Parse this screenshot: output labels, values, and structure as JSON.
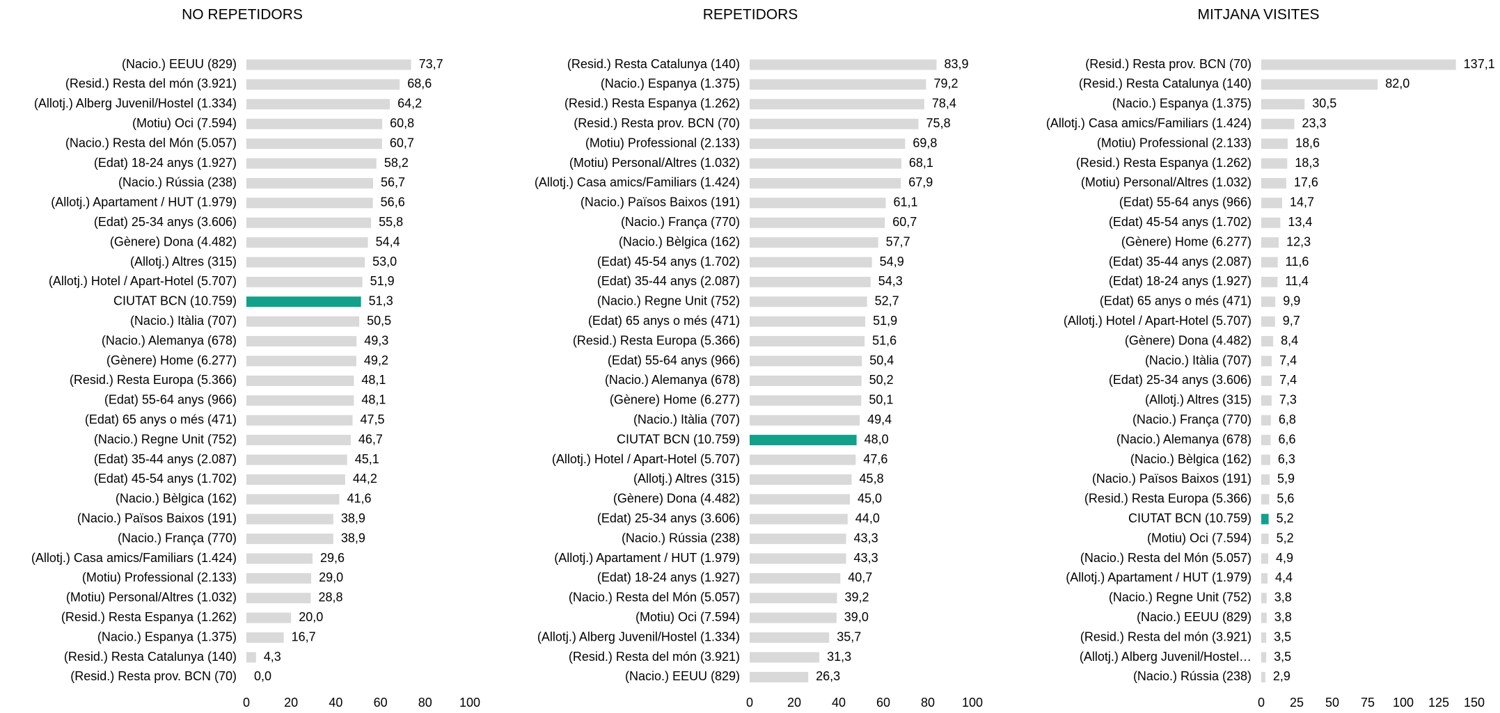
{
  "chart_data": [
    {
      "type": "barh",
      "title": "NO REPETIDORS",
      "categories": [
        "(Nacio.) EEUU (829)",
        "(Resid.) Resta del món (3.921)",
        "(Allotj.) Alberg Juvenil/Hostel (1.334)",
        "(Motiu) Oci (7.594)",
        "(Nacio.) Resta del Món (5.057)",
        "(Edat) 18-24 anys (1.927)",
        "(Nacio.) Rússia (238)",
        "(Allotj.) Apartament / HUT (1.979)",
        "(Edat) 25-34 anys (3.606)",
        "(Gènere) Dona (4.482)",
        "(Allotj.) Altres (315)",
        "(Allotj.) Hotel / Apart-Hotel (5.707)",
        "CIUTAT BCN (10.759)",
        "(Nacio.) Itàlia (707)",
        "(Nacio.) Alemanya (678)",
        "(Gènere) Home (6.277)",
        "(Resid.) Resta Europa (5.366)",
        "(Edat) 55-64 anys (966)",
        "(Edat) 65 anys o més (471)",
        "(Nacio.) Regne Unit (752)",
        "(Edat) 35-44 anys (2.087)",
        "(Edat) 45-54 anys (1.702)",
        "(Nacio.) Bèlgica (162)",
        "(Nacio.) Països Baixos (191)",
        "(Nacio.) França (770)",
        "(Allotj.) Casa amics/Familiars (1.424)",
        "(Motiu) Professional (2.133)",
        "(Motiu) Personal/Altres (1.032)",
        "(Resid.) Resta Espanya (1.262)",
        "(Nacio.) Espanya (1.375)",
        "(Resid.) Resta Catalunya (140)",
        "(Resid.) Resta prov. BCN (70)"
      ],
      "values": [
        73.7,
        68.6,
        64.2,
        60.8,
        60.7,
        58.2,
        56.7,
        56.6,
        55.8,
        54.4,
        53.0,
        51.9,
        51.3,
        50.5,
        49.3,
        49.2,
        48.1,
        48.1,
        47.5,
        46.7,
        45.1,
        44.2,
        41.6,
        38.9,
        38.9,
        29.6,
        29.0,
        28.8,
        20.0,
        16.7,
        4.3,
        0.0
      ],
      "value_labels": [
        "73,7",
        "68,6",
        "64,2",
        "60,8",
        "60,7",
        "58,2",
        "56,7",
        "56,6",
        "55,8",
        "54,4",
        "53,0",
        "51,9",
        "51,3",
        "50,5",
        "49,3",
        "49,2",
        "48,1",
        "48,1",
        "47,5",
        "46,7",
        "45,1",
        "44,2",
        "41,6",
        "38,9",
        "38,9",
        "29,6",
        "29,0",
        "28,8",
        "20,0",
        "16,7",
        "4,3",
        "0,0"
      ],
      "color": "#d9d9d9",
      "colors": [
        "#d9d9d9",
        "#d9d9d9",
        "#d9d9d9",
        "#d9d9d9",
        "#d9d9d9",
        "#d9d9d9",
        "#d9d9d9",
        "#d9d9d9",
        "#d9d9d9",
        "#d9d9d9",
        "#d9d9d9",
        "#d9d9d9",
        "#12a08a",
        "#d9d9d9",
        "#d9d9d9",
        "#d9d9d9",
        "#d9d9d9",
        "#d9d9d9",
        "#d9d9d9",
        "#d9d9d9",
        "#d9d9d9",
        "#d9d9d9",
        "#d9d9d9",
        "#d9d9d9",
        "#d9d9d9",
        "#d9d9d9",
        "#d9d9d9",
        "#d9d9d9",
        "#d9d9d9",
        "#d9d9d9",
        "#d9d9d9",
        "#d9d9d9"
      ],
      "xlim": [
        0,
        100
      ],
      "xticks": [
        0,
        20,
        40,
        60,
        80,
        100
      ]
    },
    {
      "type": "barh",
      "title": "REPETIDORS",
      "categories": [
        "(Resid.) Resta Catalunya (140)",
        "(Nacio.) Espanya (1.375)",
        "(Resid.) Resta Espanya (1.262)",
        "(Resid.) Resta prov. BCN (70)",
        "(Motiu) Professional (2.133)",
        "(Motiu) Personal/Altres (1.032)",
        "(Allotj.) Casa amics/Familiars (1.424)",
        "(Nacio.) Països Baixos (191)",
        "(Nacio.) França (770)",
        "(Nacio.) Bèlgica (162)",
        "(Edat) 45-54 anys (1.702)",
        "(Edat) 35-44 anys (2.087)",
        "(Nacio.) Regne Unit (752)",
        "(Edat) 65 anys o més (471)",
        "(Resid.) Resta Europa (5.366)",
        "(Edat) 55-64 anys (966)",
        "(Nacio.) Alemanya (678)",
        "(Gènere) Home (6.277)",
        "(Nacio.) Itàlia (707)",
        "CIUTAT BCN (10.759)",
        "(Allotj.) Hotel / Apart-Hotel (5.707)",
        "(Allotj.) Altres (315)",
        "(Gènere) Dona (4.482)",
        "(Edat) 25-34 anys (3.606)",
        "(Nacio.) Rússia (238)",
        "(Allotj.) Apartament / HUT (1.979)",
        "(Edat) 18-24 anys (1.927)",
        "(Nacio.) Resta del Món (5.057)",
        "(Motiu) Oci (7.594)",
        "(Allotj.) Alberg Juvenil/Hostel (1.334)",
        "(Resid.) Resta del món (3.921)",
        "(Nacio.) EEUU (829)"
      ],
      "values": [
        83.9,
        79.2,
        78.4,
        75.8,
        69.8,
        68.1,
        67.9,
        61.1,
        60.7,
        57.7,
        54.9,
        54.3,
        52.7,
        51.9,
        51.6,
        50.4,
        50.2,
        50.1,
        49.4,
        48.0,
        47.6,
        45.8,
        45.0,
        44.0,
        43.3,
        43.3,
        40.7,
        39.2,
        39.0,
        35.7,
        31.3,
        26.3
      ],
      "value_labels": [
        "83,9",
        "79,2",
        "78,4",
        "75,8",
        "69,8",
        "68,1",
        "67,9",
        "61,1",
        "60,7",
        "57,7",
        "54,9",
        "54,3",
        "52,7",
        "51,9",
        "51,6",
        "50,4",
        "50,2",
        "50,1",
        "49,4",
        "48,0",
        "47,6",
        "45,8",
        "45,0",
        "44,0",
        "43,3",
        "43,3",
        "40,7",
        "39,2",
        "39,0",
        "35,7",
        "31,3",
        "26,3"
      ],
      "color": "#d9d9d9",
      "colors": [
        "#d9d9d9",
        "#d9d9d9",
        "#d9d9d9",
        "#d9d9d9",
        "#d9d9d9",
        "#d9d9d9",
        "#d9d9d9",
        "#d9d9d9",
        "#d9d9d9",
        "#d9d9d9",
        "#d9d9d9",
        "#d9d9d9",
        "#d9d9d9",
        "#d9d9d9",
        "#d9d9d9",
        "#d9d9d9",
        "#d9d9d9",
        "#d9d9d9",
        "#d9d9d9",
        "#12a08a",
        "#d9d9d9",
        "#d9d9d9",
        "#d9d9d9",
        "#d9d9d9",
        "#d9d9d9",
        "#d9d9d9",
        "#d9d9d9",
        "#d9d9d9",
        "#d9d9d9",
        "#d9d9d9",
        "#d9d9d9",
        "#d9d9d9"
      ],
      "xlim": [
        0,
        100
      ],
      "xticks": [
        0,
        20,
        40,
        60,
        80,
        100
      ]
    },
    {
      "type": "barh",
      "title": "MITJANA VISITES",
      "categories": [
        "(Resid.) Resta prov. BCN (70)",
        "(Resid.) Resta Catalunya (140)",
        "(Nacio.) Espanya (1.375)",
        "(Allotj.) Casa amics/Familiars (1.424)",
        "(Motiu) Professional (2.133)",
        "(Resid.) Resta Espanya (1.262)",
        "(Motiu) Personal/Altres (1.032)",
        "(Edat) 55-64 anys (966)",
        "(Edat) 45-54 anys (1.702)",
        "(Gènere) Home (6.277)",
        "(Edat) 35-44 anys (2.087)",
        "(Edat) 18-24 anys (1.927)",
        "(Edat) 65 anys o més (471)",
        "(Allotj.) Hotel / Apart-Hotel (5.707)",
        "(Gènere) Dona (4.482)",
        "(Nacio.) Itàlia (707)",
        "(Edat) 25-34 anys (3.606)",
        "(Allotj.) Altres (315)",
        "(Nacio.) França (770)",
        "(Nacio.) Alemanya (678)",
        "(Nacio.) Bèlgica (162)",
        "(Nacio.) Països Baixos (191)",
        "(Resid.) Resta Europa (5.366)",
        "CIUTAT BCN (10.759)",
        "(Motiu) Oci (7.594)",
        "(Nacio.) Resta del Món (5.057)",
        "(Allotj.) Apartament / HUT (1.979)",
        "(Nacio.) Regne Unit (752)",
        "(Nacio.) EEUU (829)",
        "(Resid.) Resta del món (3.921)",
        "(Allotj.) Alberg Juvenil/Hostel…",
        "(Nacio.) Rússia (238)"
      ],
      "values": [
        137.1,
        82.0,
        30.5,
        23.3,
        18.6,
        18.3,
        17.6,
        14.7,
        13.4,
        12.3,
        11.6,
        11.4,
        9.9,
        9.7,
        8.4,
        7.4,
        7.4,
        7.3,
        6.8,
        6.6,
        6.3,
        5.9,
        5.6,
        5.2,
        5.2,
        4.9,
        4.4,
        3.8,
        3.8,
        3.5,
        3.5,
        2.9
      ],
      "value_labels": [
        "137,1",
        "82,0",
        "30,5",
        "23,3",
        "18,6",
        "18,3",
        "17,6",
        "14,7",
        "13,4",
        "12,3",
        "11,6",
        "11,4",
        "9,9",
        "9,7",
        "8,4",
        "7,4",
        "7,4",
        "7,3",
        "6,8",
        "6,6",
        "6,3",
        "5,9",
        "5,6",
        "5,2",
        "5,2",
        "4,9",
        "4,4",
        "3,8",
        "3,8",
        "3,5",
        "3,5",
        "2,9"
      ],
      "color": "#d9d9d9",
      "colors": [
        "#d9d9d9",
        "#d9d9d9",
        "#d9d9d9",
        "#d9d9d9",
        "#d9d9d9",
        "#d9d9d9",
        "#d9d9d9",
        "#d9d9d9",
        "#d9d9d9",
        "#d9d9d9",
        "#d9d9d9",
        "#d9d9d9",
        "#d9d9d9",
        "#d9d9d9",
        "#d9d9d9",
        "#d9d9d9",
        "#d9d9d9",
        "#d9d9d9",
        "#d9d9d9",
        "#d9d9d9",
        "#d9d9d9",
        "#d9d9d9",
        "#d9d9d9",
        "#12a08a",
        "#d9d9d9",
        "#d9d9d9",
        "#d9d9d9",
        "#d9d9d9",
        "#d9d9d9",
        "#d9d9d9",
        "#d9d9d9",
        "#d9d9d9"
      ],
      "xlim": [
        0,
        150
      ],
      "xticks": [
        0,
        25,
        50,
        75,
        100,
        125,
        150
      ]
    }
  ]
}
